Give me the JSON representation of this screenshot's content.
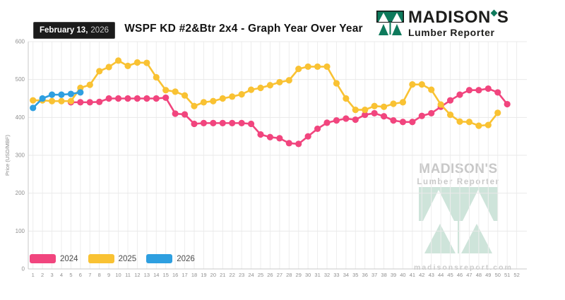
{
  "header": {
    "date_badge": {
      "date": "February 13,",
      "year": "2026"
    },
    "title": "WSPF KD #2&Btr 2x4 - Graph Year Over Year",
    "logo": {
      "name_left": "MADISON",
      "name_right": "S",
      "subtitle": "Lumber Reporter",
      "brand_green": "#0e7a5c"
    }
  },
  "watermark": {
    "title": "MADISON'S",
    "subtitle": "Lumber Reporter",
    "url": "madisonsreport.com",
    "green": "#cee4da",
    "gray": "#c8c8c8"
  },
  "legend": {
    "items": [
      {
        "label": "2024",
        "color": "#f1457e"
      },
      {
        "label": "2025",
        "color": "#f9c233"
      },
      {
        "label": "2026",
        "color": "#2e9fe0"
      }
    ]
  },
  "chart_data": {
    "type": "line",
    "title": "WSPF KD #2&Btr 2x4 - Graph Year Over Year",
    "xlabel": "",
    "ylabel": "Price (USD/MBF)",
    "x": [
      1,
      2,
      3,
      4,
      5,
      6,
      7,
      8,
      9,
      10,
      11,
      12,
      13,
      14,
      15,
      16,
      17,
      18,
      19,
      20,
      21,
      22,
      23,
      24,
      25,
      26,
      27,
      28,
      29,
      30,
      31,
      32,
      33,
      34,
      35,
      36,
      37,
      38,
      39,
      40,
      41,
      42,
      43,
      44,
      45,
      46,
      47,
      48,
      49,
      50,
      51,
      52
    ],
    "ylim": [
      0,
      600
    ],
    "yticks": [
      0,
      100,
      200,
      300,
      400,
      500,
      600
    ],
    "grid": true,
    "legend_position": "bottom-left",
    "series": [
      {
        "name": "2024",
        "color": "#f1457e",
        "values": [
          null,
          null,
          null,
          null,
          440,
          440,
          440,
          441,
          450,
          450,
          450,
          450,
          450,
          450,
          452,
          410,
          408,
          383,
          385,
          385,
          385,
          385,
          385,
          383,
          355,
          348,
          345,
          332,
          330,
          350,
          370,
          386,
          392,
          397,
          394,
          407,
          411,
          403,
          392,
          388,
          388,
          404,
          411,
          428,
          445,
          460,
          472,
          472,
          476,
          466,
          435,
          null
        ]
      },
      {
        "name": "2025",
        "color": "#f9c233",
        "values": [
          445,
          445,
          443,
          443,
          443,
          478,
          486,
          522,
          533,
          550,
          536,
          545,
          544,
          506,
          472,
          468,
          458,
          430,
          440,
          443,
          450,
          455,
          461,
          473,
          478,
          485,
          493,
          498,
          528,
          534,
          534,
          534,
          490,
          450,
          420,
          420,
          430,
          428,
          436,
          440,
          487,
          487,
          473,
          434,
          407,
          389,
          388,
          378,
          380,
          412,
          null,
          null
        ]
      },
      {
        "name": "2026",
        "color": "#2e9fe0",
        "values": [
          425,
          450,
          460,
          460,
          462,
          466,
          null,
          null,
          null,
          null,
          null,
          null,
          null,
          null,
          null,
          null,
          null,
          null,
          null,
          null,
          null,
          null,
          null,
          null,
          null,
          null,
          null,
          null,
          null,
          null,
          null,
          null,
          null,
          null,
          null,
          null,
          null,
          null,
          null,
          null,
          null,
          null,
          null,
          null,
          null,
          null,
          null,
          null,
          null,
          null,
          null,
          null
        ]
      }
    ]
  }
}
